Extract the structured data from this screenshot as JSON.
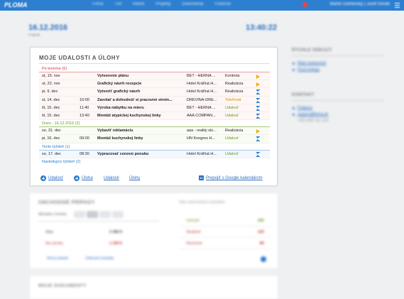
{
  "topbar": {
    "logo": "PLOMA",
    "nav": [
      "Firma",
      "Tím",
      "Klienti",
      "Projekty",
      "Dokumenty",
      "Financie"
    ],
    "user": "Martin Dolňanský | Jozef Novák"
  },
  "datebar": {
    "date": "16.12.2016",
    "day": "Piatok",
    "time": "13:40:22"
  },
  "events": {
    "title": "MOJE UDALOSTI A ÚLOHY",
    "groups": {
      "overdue": "Po termíne (6)",
      "today": "Dnes - 16.12.2016 (2)",
      "week": "Tento týždeň (1)",
      "next": "Nasledujúci týždeň (2)"
    },
    "rows": [
      {
        "date": "ut, 15. nov",
        "time": "",
        "title": "Vytvorenie plánu",
        "place": "BET - HERNA ...",
        "status": "Kontrola",
        "icon": "play-icon"
      },
      {
        "date": "ut, 22. nov",
        "time": "",
        "title": "Grafický návrh recepcie",
        "place": "Hotel Kráľiná H...",
        "status": "Realizácia",
        "icon": "play-icon"
      },
      {
        "date": "pi, 9. dec",
        "time": "",
        "title": "Vytvoriť grafický návrh",
        "place": "Hotel Kráľiná H...",
        "status": "Realizácia",
        "icon": "hourglass-icon"
      },
      {
        "date": "st, 14. dec",
        "time": "10:00",
        "title": "Zavolať a dohodnúť si pracovné stretn...",
        "place": "DREVINA-DRE...",
        "status": "Telefonát",
        "icon": "hourglass-icon"
      },
      {
        "date": "št, 15. dec",
        "time": "11:40",
        "title": "Výroba nábytku na mieru",
        "place": "BET - HERNA ...",
        "status": "Udalosť",
        "icon": "hourglass-icon"
      },
      {
        "date": "št, 15. dec",
        "time": "13:40",
        "title": "Montáž atypickej kuchynskej linky",
        "place": "AAA COMPAN...",
        "status": "Udalosť",
        "icon": "hourglass-icon"
      },
      {
        "date": "so, 31. dec",
        "time": "",
        "title": "Vybaviť reklamáciu",
        "place": "aaa - reality slo...",
        "status": "Realizácia",
        "icon": "play-icon"
      },
      {
        "date": "pi, 16. dec",
        "time": "09:00",
        "title": "Montáž kuchynskej linky",
        "place": "HN Kongres H...",
        "status": "Udalosť",
        "icon": "hourglass-icon"
      },
      {
        "date": "so, 17. dec",
        "time": "08:30",
        "title": "Vypracovať cenovú ponuku",
        "place": "Hotel Kráľiná H...",
        "status": "Udalosť",
        "icon": "hourglass-icon"
      }
    ],
    "actions": {
      "event": "Udalosť",
      "task": "Úloha",
      "events_link": "Udalosti",
      "tasks_link": "Úlohy",
      "google": "Prepojiť s Google kalendárom",
      "calendar_badge": "31"
    }
  },
  "right": {
    "quick_title": "RÝCHLE ODKAZY",
    "quick_links": [
      "Moje nastavenia",
      "Pozvi kolegu"
    ],
    "contact_title": "KONTAKT",
    "contact_links": [
      "Podpora",
      "support@firma.sk"
    ],
    "phone": "+421 900 111 222"
  },
  "finance": {
    "title": "OBCHODNÉ PRÍPADY",
    "right_title": "Stav obchodných prípadov",
    "filter": "Aktuálny mesiac",
    "rows": [
      {
        "label": "Stav",
        "value": "2 450 €"
      },
      {
        "label": "Na výrobu",
        "value": "1 200 €"
      }
    ],
    "right_rows": [
      {
        "label": "Vyhraté",
        "value": "250"
      },
      {
        "label": "Stratené",
        "value": "120"
      },
      {
        "label": "Otvorené",
        "value": "80"
      }
    ],
    "links": [
      "Nový prípad",
      "Zobraziť prípady"
    ]
  },
  "bottom": {
    "title": "MOJE DOKUMENTY"
  }
}
